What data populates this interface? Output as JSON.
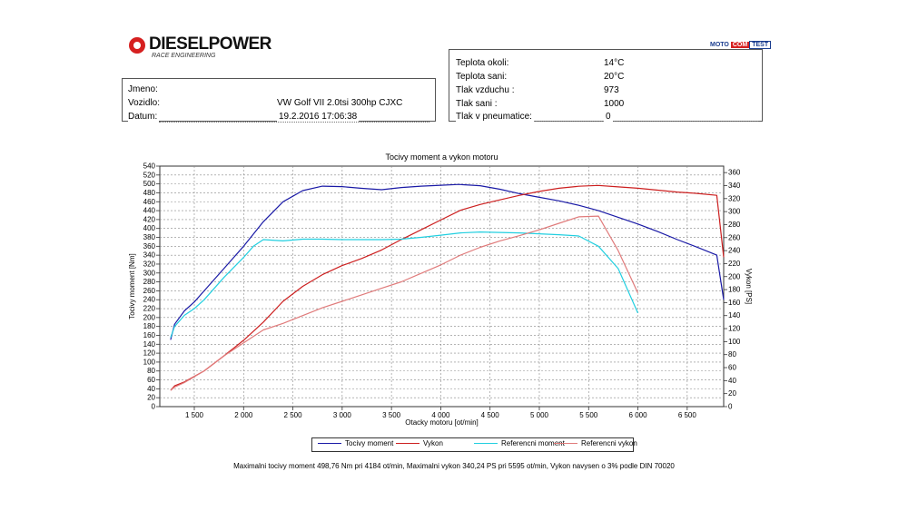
{
  "logo": {
    "brand": "DIESELPOWER",
    "tagline": "RACE ENGINEERING"
  },
  "moto_logo": {
    "part1": "MOTO",
    "part2": "COM",
    "part3": "TEST"
  },
  "info_left": [
    {
      "label": "Jmeno:",
      "value": ""
    },
    {
      "label": "Vozidlo:",
      "value": "VW Golf VII 2.0tsi 300hp CJXC"
    },
    {
      "label": "Datum:",
      "value": "19.2.2016 17:06:38"
    }
  ],
  "info_right": [
    {
      "label": "Teplota okoli:",
      "value": "14°C"
    },
    {
      "label": "Teplota sani:",
      "value": "20°C"
    },
    {
      "label": "Tlak vzduchu :",
      "value": "973"
    },
    {
      "label": "Tlak sani :",
      "value": "1000"
    },
    {
      "label": "Tlak v pneumatice:",
      "value": "0"
    }
  ],
  "footer": "Maximalni tocivy moment 498,76 Nm pri 4184 ot/min,  Maximalni vykon 340,24 PS pri 5595 ot/min,  Vykon navysen o 3% podle DIN 70020",
  "colors": {
    "torque": "#1a1aa6",
    "power": "#cc1f1f",
    "ref_torque": "#22cfe0",
    "ref_power": "#e07b7b"
  },
  "chart_data": {
    "type": "line",
    "title": "Tocivy moment a vykon motoru",
    "xlabel": "Otacky motoru [ot/min]",
    "ylabel": "Tocivy moment [Nm]",
    "ylabel_right": "Vykon [PS]",
    "xlim": [
      1150,
      6870
    ],
    "ylim": [
      0,
      540
    ],
    "ylim_right": [
      0,
      370
    ],
    "x_ticks": [
      1500,
      2000,
      2500,
      3000,
      3500,
      4000,
      4500,
      5000,
      5500,
      6000,
      6500
    ],
    "x_tick_labels": [
      "1 500",
      "2 000",
      "2 500",
      "3 000",
      "3 500",
      "4 000",
      "4 500",
      "5 000",
      "5 500",
      "6 000",
      "6 500"
    ],
    "y_ticks": [
      0,
      20,
      40,
      60,
      80,
      100,
      120,
      140,
      160,
      180,
      200,
      220,
      240,
      260,
      280,
      300,
      320,
      340,
      360,
      380,
      400,
      420,
      440,
      460,
      480,
      500,
      520,
      540
    ],
    "y_ticks_right": [
      0,
      20,
      40,
      60,
      80,
      100,
      120,
      140,
      160,
      180,
      200,
      220,
      240,
      260,
      280,
      300,
      320,
      340,
      360
    ],
    "grid": true,
    "legend_position": "bottom",
    "series": [
      {
        "name": "Tocivy moment",
        "axis": "left",
        "color": "#1a1aa6",
        "x": [
          1260,
          1300,
          1400,
          1500,
          1600,
          1800,
          2000,
          2200,
          2400,
          2600,
          2800,
          3000,
          3200,
          3400,
          3600,
          3800,
          4000,
          4184,
          4400,
          4600,
          4800,
          5000,
          5200,
          5400,
          5600,
          5800,
          6000,
          6200,
          6400,
          6600,
          6800,
          6870
        ],
        "y": [
          150,
          185,
          215,
          235,
          260,
          310,
          360,
          415,
          460,
          485,
          495,
          494,
          490,
          487,
          492,
          495,
          497,
          498.8,
          496,
          488,
          478,
          470,
          462,
          452,
          440,
          425,
          410,
          393,
          375,
          358,
          340,
          240
        ]
      },
      {
        "name": "Vykon",
        "axis": "right",
        "color": "#cc1f1f",
        "x": [
          1260,
          1300,
          1400,
          1600,
          1800,
          2000,
          2200,
          2400,
          2600,
          2800,
          3000,
          3200,
          3400,
          3600,
          3800,
          4000,
          4200,
          4400,
          4600,
          4800,
          5000,
          5200,
          5400,
          5595,
          5800,
          6000,
          6200,
          6400,
          6600,
          6800,
          6870
        ],
        "y": [
          25,
          32,
          38,
          55,
          78,
          102,
          130,
          162,
          185,
          203,
          217,
          228,
          241,
          257,
          272,
          287,
          302,
          311,
          318,
          325,
          331,
          336,
          339,
          340.2,
          338,
          336,
          333,
          330,
          328,
          325,
          230
        ]
      },
      {
        "name": "Referencni moment",
        "axis": "left",
        "color": "#22cfe0",
        "x": [
          1260,
          1300,
          1400,
          1500,
          1600,
          1800,
          2000,
          2100,
          2200,
          2400,
          2600,
          2800,
          3000,
          3200,
          3400,
          3600,
          3800,
          4000,
          4200,
          4400,
          4600,
          4800,
          5000,
          5200,
          5400,
          5600,
          5800,
          6000
        ],
        "y": [
          155,
          180,
          205,
          220,
          240,
          290,
          335,
          360,
          375,
          372,
          376,
          376,
          375,
          375,
          375,
          376,
          380,
          385,
          390,
          392,
          391,
          390,
          388,
          386,
          383,
          360,
          310,
          210
        ]
      },
      {
        "name": "Referencni vykon",
        "axis": "right",
        "color": "#e07b7b",
        "x": [
          1260,
          1300,
          1400,
          1600,
          1800,
          2000,
          2200,
          2400,
          2600,
          2800,
          3000,
          3200,
          3400,
          3600,
          3800,
          4000,
          4200,
          4400,
          4600,
          4800,
          5000,
          5200,
          5400,
          5600,
          5800,
          6000
        ],
        "y": [
          25,
          30,
          37,
          55,
          78,
          98,
          118,
          128,
          140,
          152,
          162,
          172,
          182,
          192,
          205,
          218,
          233,
          245,
          255,
          263,
          272,
          282,
          292,
          293,
          240,
          175
        ]
      }
    ]
  }
}
